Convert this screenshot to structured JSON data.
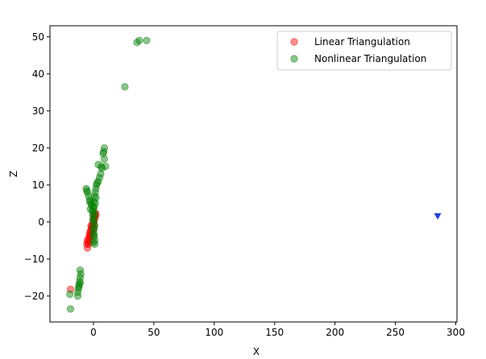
{
  "chart_data": {
    "type": "scatter",
    "title": "",
    "xlabel": "X",
    "ylabel": "Z",
    "xlim": [
      -36,
      301
    ],
    "ylim": [
      -27,
      53
    ],
    "x_ticks": [
      0,
      50,
      100,
      150,
      200,
      250,
      300
    ],
    "y_ticks": [
      -20,
      -10,
      0,
      10,
      20,
      30,
      40,
      50
    ],
    "grid": false,
    "legend_position": "top-right",
    "series": [
      {
        "name": "Linear Triangulation",
        "color": "#ff0000",
        "marker": "circle",
        "points": [
          [
            -19,
            -18.2
          ],
          [
            -5,
            -7
          ],
          [
            -5.5,
            -6
          ],
          [
            -4.5,
            -5.5
          ],
          [
            -5,
            -5
          ],
          [
            -4,
            -4.5
          ],
          [
            -3.5,
            -4
          ],
          [
            -3,
            -3.5
          ],
          [
            -3,
            -3
          ],
          [
            -2.5,
            -2.5
          ],
          [
            -2,
            -2
          ],
          [
            -1.5,
            -1.5
          ],
          [
            -1,
            -1
          ],
          [
            -0.5,
            -0.5
          ],
          [
            0,
            0
          ],
          [
            0.5,
            0.5
          ],
          [
            1,
            1
          ],
          [
            1.5,
            1.5
          ],
          [
            2,
            2
          ],
          [
            1.5,
            2.5
          ],
          [
            0,
            -2
          ],
          [
            -1,
            -3
          ],
          [
            -2,
            -4
          ],
          [
            0.5,
            -1
          ],
          [
            -3,
            -5
          ],
          [
            -4,
            -6
          ],
          [
            -2,
            -1
          ],
          [
            0,
            1.5
          ]
        ]
      },
      {
        "name": "Nonlinear Triangulation",
        "color": "#008000",
        "marker": "circle",
        "points": [
          [
            36,
            48.5
          ],
          [
            38,
            49
          ],
          [
            44,
            49
          ],
          [
            26,
            36.5
          ],
          [
            9,
            20
          ],
          [
            8.5,
            19
          ],
          [
            8,
            18.5
          ],
          [
            9,
            17
          ],
          [
            10,
            15
          ],
          [
            7,
            14.5
          ],
          [
            6.5,
            15
          ],
          [
            4,
            15.5
          ],
          [
            6,
            13
          ],
          [
            5,
            12
          ],
          [
            4,
            11
          ],
          [
            3,
            10.5
          ],
          [
            2.5,
            10
          ],
          [
            2,
            9
          ],
          [
            1.5,
            8
          ],
          [
            1,
            7
          ],
          [
            2,
            6.5
          ],
          [
            1.5,
            5
          ],
          [
            0.5,
            4
          ],
          [
            0,
            3
          ],
          [
            -0.5,
            2
          ],
          [
            0,
            1
          ],
          [
            0.5,
            0
          ],
          [
            1,
            -1
          ],
          [
            0.5,
            -2
          ],
          [
            0,
            -3
          ],
          [
            0.5,
            -4
          ],
          [
            1,
            -5
          ],
          [
            0,
            -5.5
          ],
          [
            1,
            -6
          ],
          [
            0.5,
            -3.5
          ],
          [
            0,
            -1.5
          ],
          [
            -0.5,
            0.5
          ],
          [
            0,
            4
          ],
          [
            0.5,
            5.5
          ],
          [
            1,
            2
          ],
          [
            -6,
            9
          ],
          [
            -5.5,
            8.5
          ],
          [
            -5,
            8
          ],
          [
            -4,
            7
          ],
          [
            -3,
            6
          ],
          [
            -2,
            5
          ],
          [
            -1.5,
            4.5
          ],
          [
            -3,
            5.5
          ],
          [
            -2.5,
            3.5
          ],
          [
            -1,
            3
          ],
          [
            -11,
            -13
          ],
          [
            -10.5,
            -14
          ],
          [
            -11,
            -15
          ],
          [
            -11.5,
            -16
          ],
          [
            -12,
            -17
          ],
          [
            -12.5,
            -18
          ],
          [
            -13,
            -19
          ],
          [
            -13,
            -20
          ],
          [
            -12,
            -17.5
          ],
          [
            -11,
            -16.5
          ],
          [
            -19.5,
            -19.5
          ],
          [
            -19,
            -23.5
          ]
        ]
      },
      {
        "name": "",
        "color": "#1f3fe0",
        "marker": "triangle-down",
        "points": [
          [
            285,
            1.5
          ]
        ]
      }
    ]
  }
}
